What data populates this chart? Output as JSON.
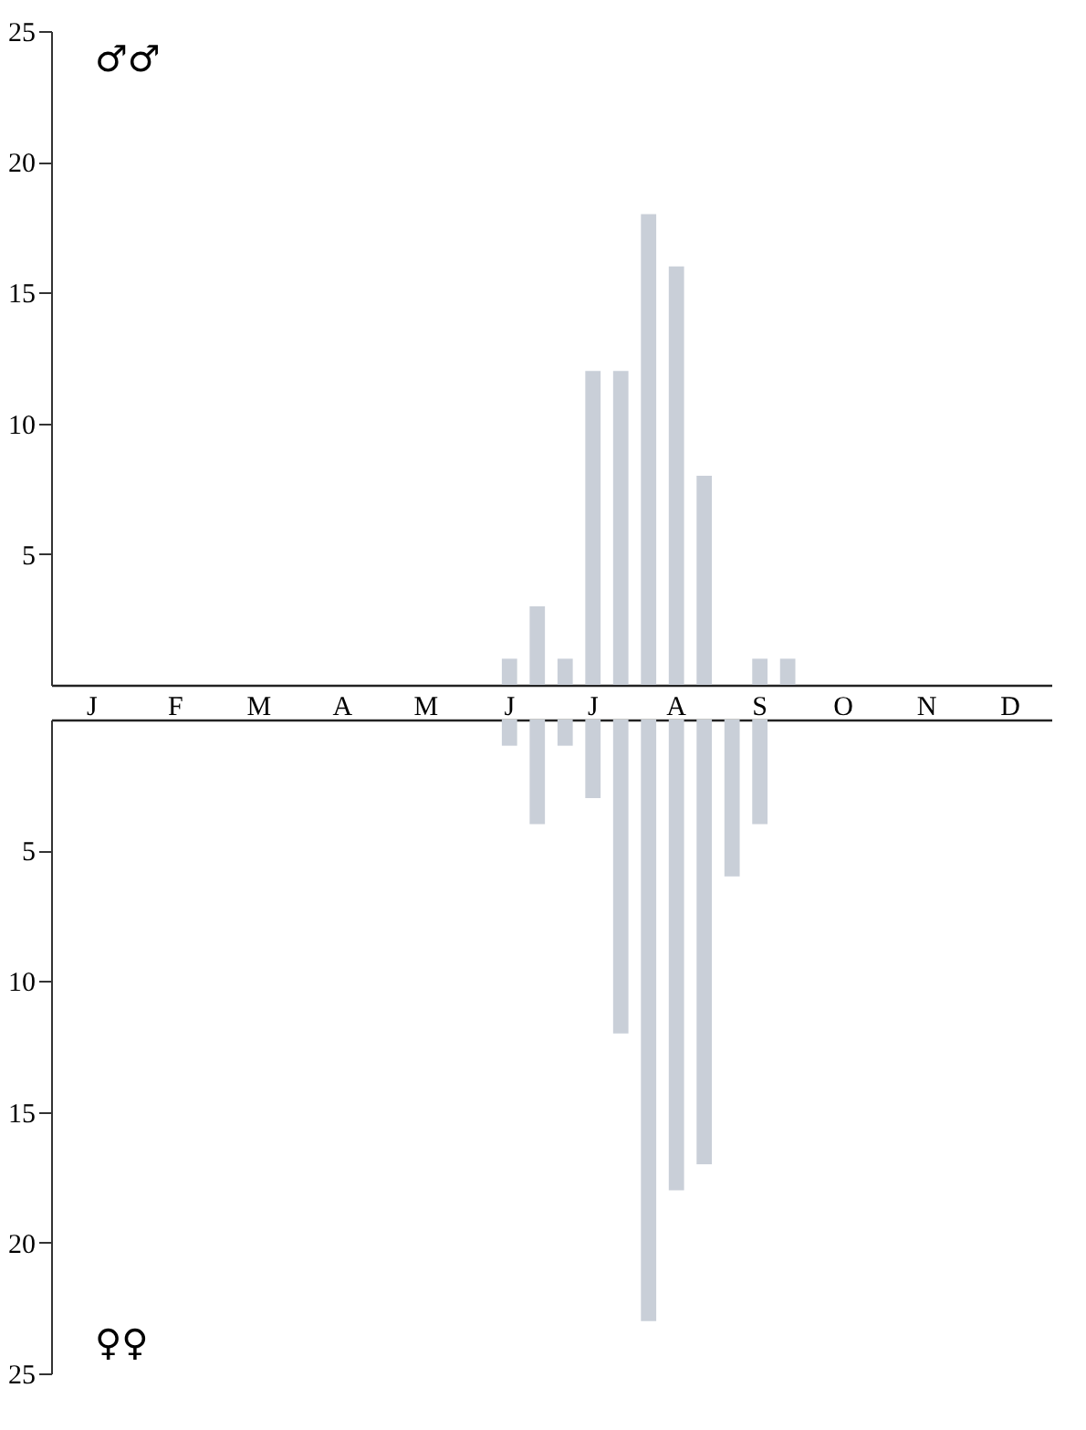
{
  "chart_data": [
    {
      "type": "bar",
      "categories": [
        null,
        "J",
        null,
        null,
        "F",
        null,
        null,
        "M",
        null,
        null,
        "A",
        null,
        null,
        "M",
        null,
        null,
        "J",
        null,
        null,
        "J",
        null,
        null,
        "A",
        null,
        null,
        "S",
        null,
        null,
        "O",
        null,
        null,
        "N",
        null,
        null,
        "D",
        null
      ],
      "series": [
        {
          "color": "#c9cfd8",
          "values": [
            0,
            0,
            0,
            0,
            0,
            0,
            0,
            0,
            0,
            0,
            0,
            0,
            0,
            0,
            0,
            0,
            1,
            3,
            1,
            12,
            12,
            18,
            16,
            8,
            0,
            1,
            1,
            0,
            0,
            0,
            0,
            0,
            0,
            0,
            0,
            0
          ]
        }
      ],
      "ylim": [
        0,
        25
      ],
      "yticks": [
        5,
        10,
        15,
        20,
        25
      ],
      "annotations": [
        "♂♂"
      ]
    },
    {
      "type": "bar",
      "categories": [
        null,
        null,
        null,
        null,
        null,
        null,
        null,
        null,
        null,
        null,
        null,
        null,
        null,
        null,
        null,
        null,
        null,
        null,
        null,
        null,
        null,
        null,
        null,
        null,
        null,
        null,
        null,
        null,
        null,
        null,
        null,
        null,
        null,
        null,
        null,
        null
      ],
      "series": [
        {
          "color": "#c9cfd8",
          "values": [
            0,
            0,
            0,
            0,
            0,
            0,
            0,
            0,
            0,
            0,
            0,
            0,
            0,
            0,
            0,
            0,
            1,
            4,
            1,
            3,
            12,
            23,
            18,
            17,
            6,
            4,
            0,
            0,
            0,
            0,
            0,
            0,
            0,
            0,
            0,
            0
          ]
        }
      ],
      "ylim": [
        25,
        0
      ],
      "yticks": [
        5,
        10,
        15,
        20,
        25
      ],
      "annotations": [
        "♀♀"
      ]
    }
  ]
}
